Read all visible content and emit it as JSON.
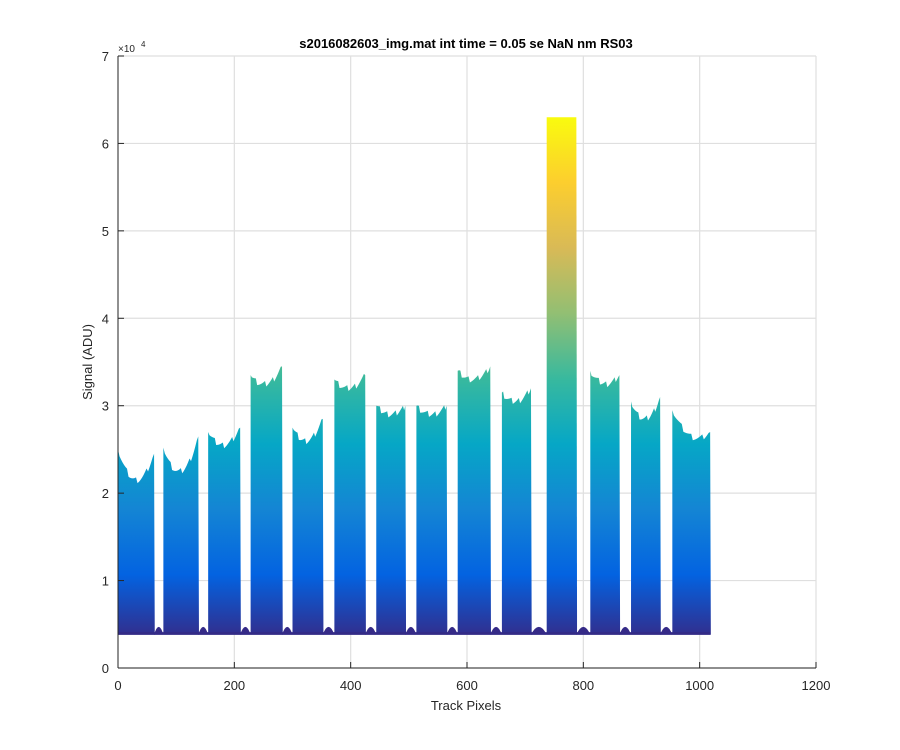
{
  "chart_data": {
    "type": "area",
    "title": "s2016082603_img.mat int time = 0.05 se  NaN nm RS03",
    "xlabel": "Track Pixels",
    "ylabel": "Signal (ADU)",
    "xlim": [
      0,
      1200
    ],
    "ylim": [
      0,
      70000
    ],
    "xticks": [
      0,
      200,
      400,
      600,
      800,
      1000,
      1200
    ],
    "yticks": [
      0,
      10000,
      20000,
      30000,
      40000,
      50000,
      60000,
      70000
    ],
    "xtick_labels": [
      "0",
      "200",
      "400",
      "600",
      "800",
      "1000",
      "1200"
    ],
    "ytick_labels": [
      "0",
      "1",
      "2",
      "3",
      "4",
      "5",
      "6",
      "7"
    ],
    "y_exponent_base": "×10",
    "y_exponent_power": "4",
    "grid": true,
    "baseline": 3800,
    "colormap": "parula",
    "colormap_stops": [
      "#352a87",
      "#0363e1",
      "#1485d4",
      "#06a7c6",
      "#38b99e",
      "#92bf73",
      "#d9ba56",
      "#fcce2e",
      "#f9fb0e"
    ],
    "track_segments": [
      {
        "x_start": 0,
        "x_end": 62,
        "start": 25000,
        "mid_value": 21500,
        "end": 24500
      },
      {
        "x_start": 78,
        "x_end": 138,
        "start": 25200,
        "mid_value": 22500,
        "end": 26500
      },
      {
        "x_start": 155,
        "x_end": 210,
        "start": 27000,
        "mid_value": 25500,
        "end": 27500
      },
      {
        "x_start": 228,
        "x_end": 282,
        "start": 33500,
        "mid_value": 32500,
        "end": 34500
      },
      {
        "x_start": 300,
        "x_end": 352,
        "start": 27500,
        "mid_value": 26000,
        "end": 28500
      },
      {
        "x_start": 372,
        "x_end": 425,
        "start": 33000,
        "mid_value": 32000,
        "end": 33500
      },
      {
        "x_start": 444,
        "x_end": 494,
        "start": 30000,
        "mid_value": 29000,
        "end": 30000
      },
      {
        "x_start": 513,
        "x_end": 565,
        "start": 30000,
        "mid_value": 29000,
        "end": 30000
      },
      {
        "x_start": 584,
        "x_end": 640,
        "start": 34000,
        "mid_value": 33000,
        "end": 34500
      },
      {
        "x_start": 660,
        "x_end": 710,
        "start": 31500,
        "mid_value": 30500,
        "end": 32000
      },
      {
        "x_start": 737,
        "x_end": 788,
        "start": 63000,
        "mid_value": 63000,
        "end": 63000
      },
      {
        "x_start": 812,
        "x_end": 862,
        "start": 34000,
        "mid_value": 32500,
        "end": 33500
      },
      {
        "x_start": 882,
        "x_end": 932,
        "start": 30500,
        "mid_value": 28500,
        "end": 31000
      },
      {
        "x_start": 953,
        "x_end": 1018,
        "start": 29500,
        "mid_value": 26500,
        "end": 27000
      }
    ]
  }
}
